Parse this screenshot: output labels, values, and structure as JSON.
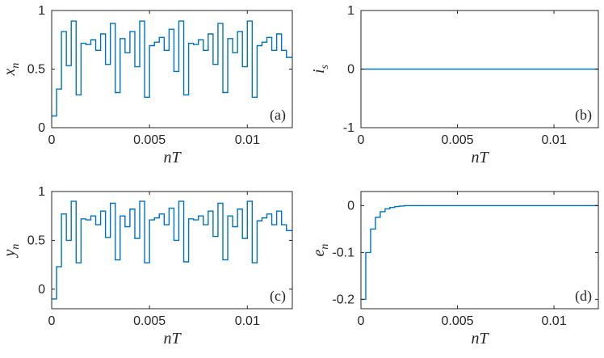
{
  "line_color": "#0072BD",
  "chart_data": [
    {
      "type": "line",
      "step": "post",
      "panel_label": "(a)",
      "ylabel": "x",
      "ylabel_sub": "n",
      "xlabel": "nT",
      "xlim": [
        0,
        0.0123
      ],
      "ylim": [
        0,
        1
      ],
      "xticks": [
        0,
        0.005,
        0.01
      ],
      "xtick_labels": [
        "0",
        "0.005",
        "0.01"
      ],
      "yticks": [
        0,
        0.5,
        1
      ],
      "ytick_labels": [
        "0",
        "0.5",
        "1"
      ],
      "grid": false,
      "x": [
        0,
        0.00025,
        0.0005,
        0.00075,
        0.001,
        0.00125,
        0.0015,
        0.00175,
        0.002,
        0.00225,
        0.0025,
        0.00275,
        0.003,
        0.00325,
        0.0035,
        0.00375,
        0.004,
        0.00425,
        0.0045,
        0.00475,
        0.005,
        0.00525,
        0.0055,
        0.00575,
        0.006,
        0.00625,
        0.0065,
        0.00675,
        0.007,
        0.00725,
        0.0075,
        0.00775,
        0.008,
        0.00825,
        0.0085,
        0.00875,
        0.009,
        0.00925,
        0.0095,
        0.00975,
        0.01,
        0.01025,
        0.0105,
        0.01075,
        0.011,
        0.01125,
        0.0115,
        0.01175,
        0.012
      ],
      "y": [
        0.1,
        0.33,
        0.82,
        0.53,
        0.91,
        0.28,
        0.72,
        0.71,
        0.75,
        0.66,
        0.8,
        0.54,
        0.89,
        0.3,
        0.76,
        0.64,
        0.82,
        0.52,
        0.91,
        0.26,
        0.7,
        0.73,
        0.77,
        0.66,
        0.84,
        0.48,
        0.91,
        0.28,
        0.72,
        0.71,
        0.75,
        0.66,
        0.8,
        0.54,
        0.89,
        0.3,
        0.76,
        0.64,
        0.82,
        0.52,
        0.91,
        0.26,
        0.7,
        0.73,
        0.77,
        0.66,
        0.8,
        0.66,
        0.6
      ]
    },
    {
      "type": "line",
      "step": "post",
      "panel_label": "(b)",
      "ylabel": "i",
      "ylabel_sub": "s",
      "xlabel": "nT",
      "xlim": [
        0,
        0.0123
      ],
      "ylim": [
        -1,
        1
      ],
      "xticks": [
        0,
        0.005,
        0.01
      ],
      "xtick_labels": [
        "0",
        "0.005",
        "0.01"
      ],
      "yticks": [
        -1,
        0,
        1
      ],
      "ytick_labels": [
        "-1",
        "0",
        "1"
      ],
      "grid": false,
      "x": [
        0,
        0.0123
      ],
      "y": [
        0,
        0
      ]
    },
    {
      "type": "line",
      "step": "post",
      "panel_label": "(c)",
      "ylabel": "y",
      "ylabel_sub": "n",
      "xlabel": "nT",
      "xlim": [
        0,
        0.0123
      ],
      "ylim": [
        -0.2,
        1
      ],
      "xticks": [
        0,
        0.005,
        0.01
      ],
      "xtick_labels": [
        "0",
        "0.005",
        "0.01"
      ],
      "yticks": [
        0,
        0.5,
        1
      ],
      "ytick_labels": [
        "0",
        "0.5",
        "1"
      ],
      "grid": false,
      "x": [
        0,
        0.00025,
        0.0005,
        0.00075,
        0.001,
        0.00125,
        0.0015,
        0.00175,
        0.002,
        0.00225,
        0.0025,
        0.00275,
        0.003,
        0.00325,
        0.0035,
        0.00375,
        0.004,
        0.00425,
        0.0045,
        0.00475,
        0.005,
        0.00525,
        0.0055,
        0.00575,
        0.006,
        0.00625,
        0.0065,
        0.00675,
        0.007,
        0.00725,
        0.0075,
        0.00775,
        0.008,
        0.00825,
        0.0085,
        0.00875,
        0.009,
        0.00925,
        0.0095,
        0.00975,
        0.01,
        0.01025,
        0.0105,
        0.01075,
        0.011,
        0.01125,
        0.0115,
        0.01175,
        0.012
      ],
      "y": [
        -0.1,
        0.23,
        0.77,
        0.5,
        0.9,
        0.27,
        0.72,
        0.71,
        0.75,
        0.66,
        0.8,
        0.53,
        0.88,
        0.3,
        0.75,
        0.64,
        0.82,
        0.52,
        0.9,
        0.27,
        0.71,
        0.73,
        0.77,
        0.66,
        0.83,
        0.5,
        0.9,
        0.28,
        0.72,
        0.71,
        0.75,
        0.66,
        0.8,
        0.54,
        0.88,
        0.3,
        0.75,
        0.64,
        0.82,
        0.52,
        0.9,
        0.27,
        0.7,
        0.73,
        0.77,
        0.66,
        0.8,
        0.66,
        0.6
      ]
    },
    {
      "type": "line",
      "step": "post",
      "panel_label": "(d)",
      "ylabel": "e",
      "ylabel_sub": "n",
      "xlabel": "nT",
      "xlim": [
        0,
        0.0123
      ],
      "ylim": [
        -0.22,
        0.03
      ],
      "xticks": [
        0,
        0.005,
        0.01
      ],
      "xtick_labels": [
        "0",
        "0.005",
        "0.01"
      ],
      "yticks": [
        -0.2,
        -0.1,
        0
      ],
      "ytick_labels": [
        "-0.2",
        "-0.1",
        "0"
      ],
      "grid": false,
      "x": [
        0,
        0.00025,
        0.0005,
        0.00075,
        0.001,
        0.00125,
        0.0015,
        0.00175,
        0.002,
        0.00225,
        0.0123
      ],
      "y": [
        -0.2,
        -0.1,
        -0.05,
        -0.025,
        -0.013,
        -0.007,
        -0.004,
        -0.002,
        -0.001,
        0,
        0
      ]
    }
  ]
}
